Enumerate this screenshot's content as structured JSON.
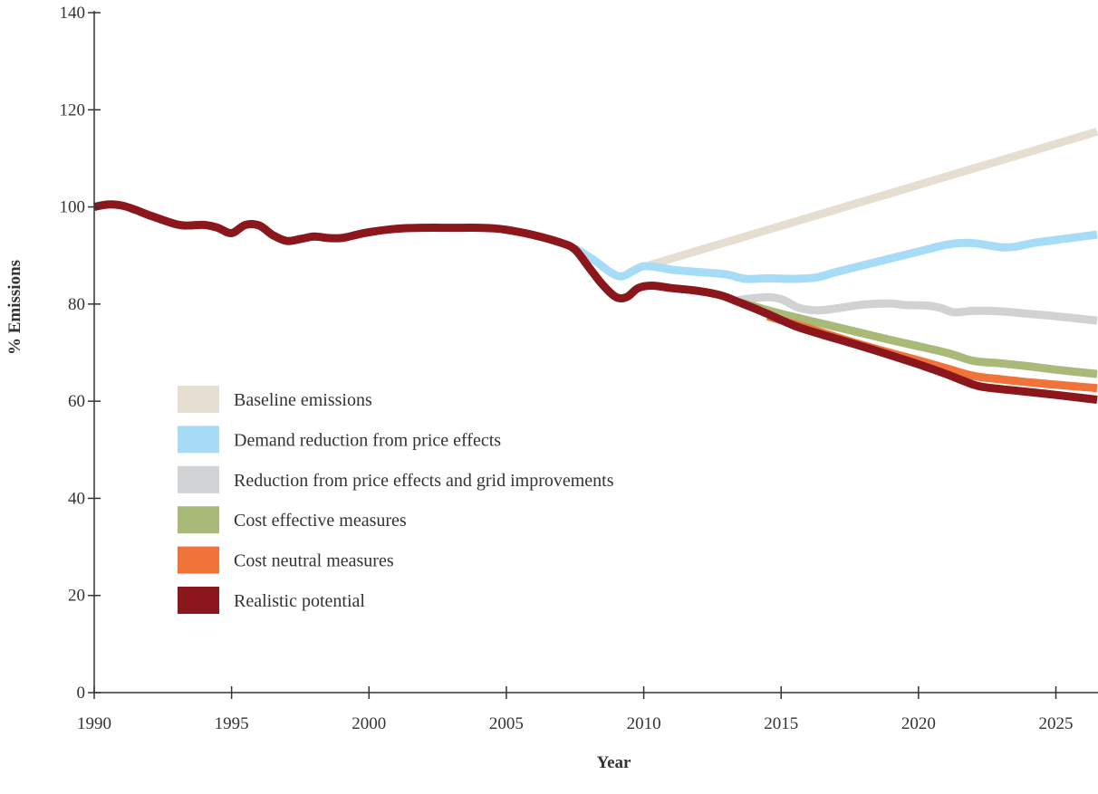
{
  "chart_data": {
    "type": "line",
    "title": "",
    "xlabel": "Year",
    "ylabel": "% Emissions",
    "xlim": [
      1990,
      2026.5
    ],
    "ylim": [
      0,
      140
    ],
    "xticks": [
      1990,
      1995,
      2000,
      2005,
      2010,
      2015,
      2020,
      2025
    ],
    "yticks": [
      0,
      20,
      40,
      60,
      80,
      100,
      120,
      140
    ],
    "grid": false,
    "legend_position": "left-center",
    "series": [
      {
        "name": "Baseline emissions",
        "color": "#e6dfd1",
        "points": [
          [
            2010.2,
            88
          ],
          [
            2026.5,
            115.5
          ]
        ]
      },
      {
        "name": "Demand reduction from price effects",
        "color": "#a7dcf6",
        "points": [
          [
            2007.5,
            91.5
          ],
          [
            2008.2,
            89
          ],
          [
            2008.8,
            86.5
          ],
          [
            2009.2,
            85.7
          ],
          [
            2009.6,
            86.8
          ],
          [
            2010,
            87.8
          ],
          [
            2010.5,
            87.6
          ],
          [
            2011,
            87.1
          ],
          [
            2012,
            86.6
          ],
          [
            2013,
            86.1
          ],
          [
            2013.7,
            85.2
          ],
          [
            2014.5,
            85.3
          ],
          [
            2015.5,
            85.2
          ],
          [
            2016.3,
            85.5
          ],
          [
            2017,
            86.6
          ],
          [
            2018,
            88
          ],
          [
            2019,
            89.4
          ],
          [
            2020,
            90.8
          ],
          [
            2021,
            92.2
          ],
          [
            2021.7,
            92.6
          ],
          [
            2022.2,
            92.4
          ],
          [
            2023,
            91.7
          ],
          [
            2023.5,
            91.8
          ],
          [
            2024.2,
            92.6
          ],
          [
            2025,
            93.2
          ],
          [
            2026.5,
            94.3
          ]
        ]
      },
      {
        "name": "Reduction from price effects and grid improvements",
        "color": "#d1d2d4",
        "points": [
          [
            2013.4,
            80.8
          ],
          [
            2014,
            81.2
          ],
          [
            2014.6,
            81.4
          ],
          [
            2015.1,
            80.8
          ],
          [
            2015.6,
            79.3
          ],
          [
            2016.3,
            78.7
          ],
          [
            2017,
            79.1
          ],
          [
            2018,
            79.9
          ],
          [
            2019,
            80.1
          ],
          [
            2019.5,
            79.8
          ],
          [
            2020.3,
            79.7
          ],
          [
            2020.8,
            79.2
          ],
          [
            2021.3,
            78.3
          ],
          [
            2022,
            78.6
          ],
          [
            2023,
            78.5
          ],
          [
            2024,
            78
          ],
          [
            2025,
            77.5
          ],
          [
            2026.5,
            76.6
          ]
        ]
      },
      {
        "name": "Cost effective measures",
        "color": "#a8b978",
        "points": [
          [
            2013.6,
            80.2
          ],
          [
            2015,
            78
          ],
          [
            2017,
            75.3
          ],
          [
            2019,
            72.6
          ],
          [
            2021,
            70
          ],
          [
            2022,
            68.3
          ],
          [
            2023,
            67.8
          ],
          [
            2024,
            67.2
          ],
          [
            2025,
            66.5
          ],
          [
            2026.5,
            65.6
          ]
        ]
      },
      {
        "name": "Cost neutral measures",
        "color": "#f0733a",
        "points": [
          [
            2014.5,
            77.5
          ],
          [
            2016,
            75
          ],
          [
            2018,
            71.5
          ],
          [
            2020,
            68.4
          ],
          [
            2021,
            66.8
          ],
          [
            2022,
            65.2
          ],
          [
            2023,
            64.5
          ],
          [
            2024,
            63.9
          ],
          [
            2025,
            63.4
          ],
          [
            2026.5,
            62.7
          ]
        ]
      },
      {
        "name": "Realistic potential",
        "color": "#8b171c",
        "points": [
          [
            1990,
            100
          ],
          [
            1990.5,
            100.5
          ],
          [
            1991,
            100.3
          ],
          [
            1991.5,
            99.4
          ],
          [
            1992,
            98.3
          ],
          [
            1993,
            96.4
          ],
          [
            1993.5,
            96.2
          ],
          [
            1994,
            96.3
          ],
          [
            1994.5,
            95.7
          ],
          [
            1995,
            94.6
          ],
          [
            1995.5,
            96.3
          ],
          [
            1996,
            96.2
          ],
          [
            1996.5,
            94.2
          ],
          [
            1997,
            93
          ],
          [
            1997.5,
            93.4
          ],
          [
            1998,
            93.9
          ],
          [
            1998.5,
            93.6
          ],
          [
            1999,
            93.6
          ],
          [
            1999.5,
            94.2
          ],
          [
            2000,
            94.8
          ],
          [
            2001,
            95.5
          ],
          [
            2002,
            95.7
          ],
          [
            2003,
            95.7
          ],
          [
            2004,
            95.7
          ],
          [
            2004.5,
            95.6
          ],
          [
            2005,
            95.3
          ],
          [
            2006,
            94.2
          ],
          [
            2007,
            92.6
          ],
          [
            2007.5,
            91.2
          ],
          [
            2008,
            87.6
          ],
          [
            2008.5,
            84
          ],
          [
            2009,
            81.4
          ],
          [
            2009.4,
            81.5
          ],
          [
            2009.8,
            83.3
          ],
          [
            2010.3,
            83.8
          ],
          [
            2011,
            83.3
          ],
          [
            2012,
            82.7
          ],
          [
            2012.8,
            81.8
          ],
          [
            2013.5,
            80.3
          ],
          [
            2014.5,
            78
          ],
          [
            2015.5,
            75.5
          ],
          [
            2016.5,
            73.7
          ],
          [
            2018,
            71.2
          ],
          [
            2020,
            67.6
          ],
          [
            2021,
            65.6
          ],
          [
            2022,
            63.4
          ],
          [
            2022.5,
            62.8
          ],
          [
            2023.5,
            62.2
          ],
          [
            2025,
            61.3
          ],
          [
            2026.5,
            60.3
          ]
        ]
      }
    ]
  }
}
